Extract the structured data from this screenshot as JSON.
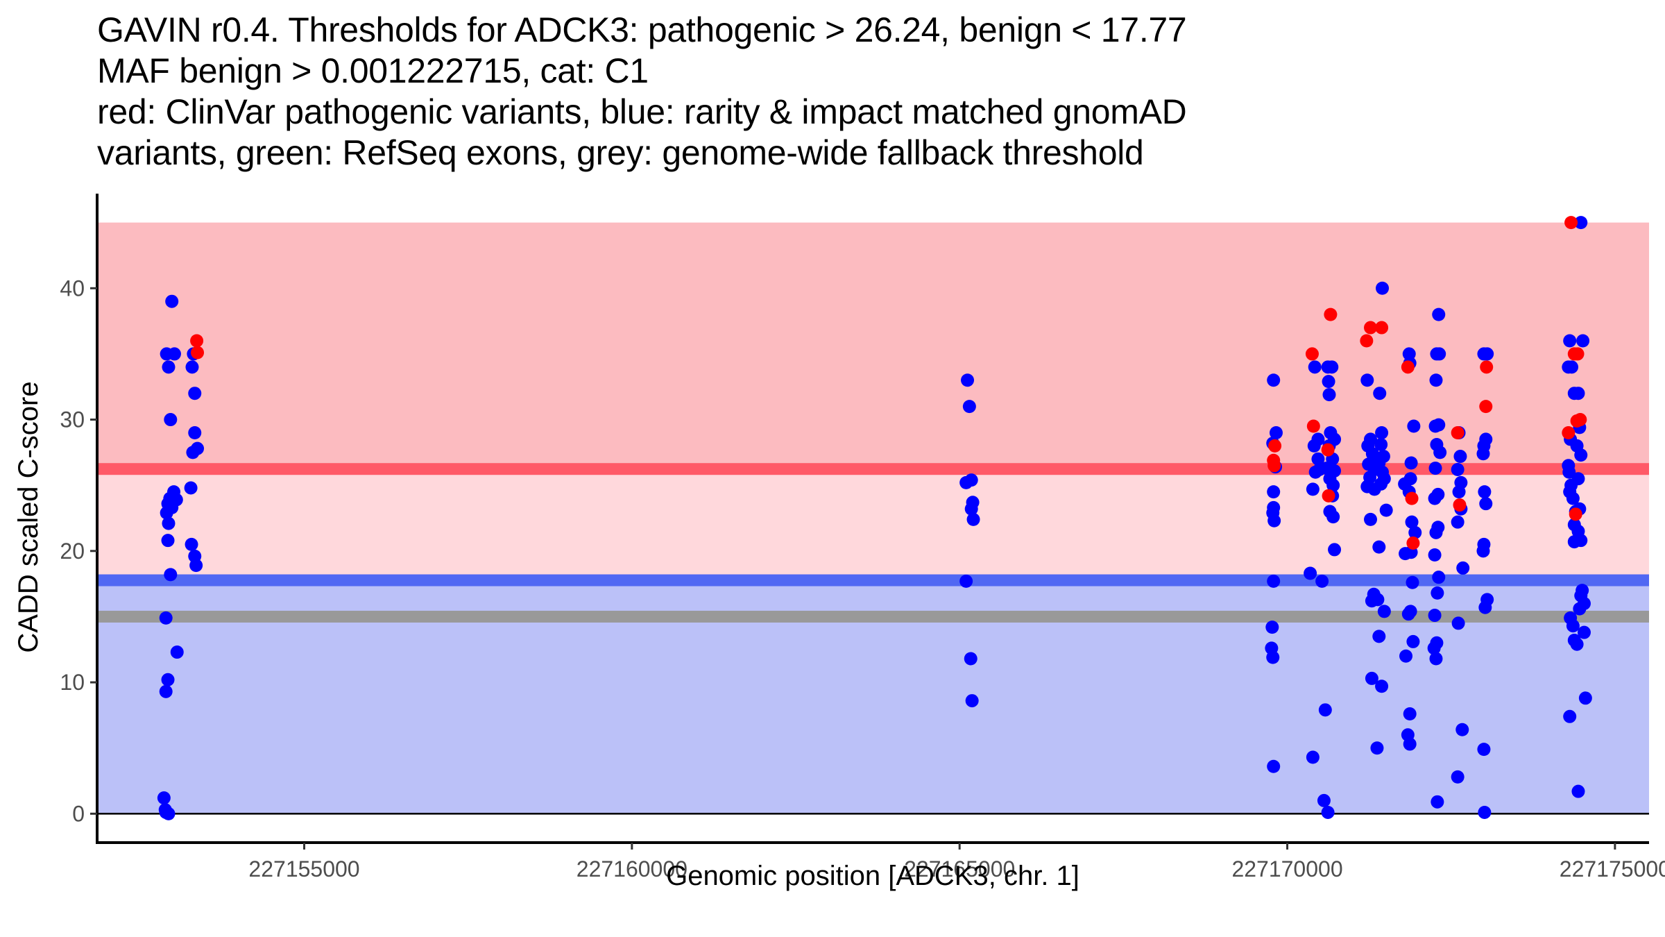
{
  "title_lines": [
    "GAVIN r0.4. Thresholds for ADCK3: pathogenic > 26.24, benign < 17.77",
    "MAF benign > 0.001222715, cat: C1",
    "red: ClinVar pathogenic variants, blue: rarity & impact matched gnomAD",
    "variants, green: RefSeq exons, grey: genome-wide fallback threshold"
  ],
  "chart_data": {
    "type": "scatter",
    "title": "GAVIN r0.4. Thresholds for ADCK3: pathogenic > 26.24, benign < 17.77 / MAF benign > 0.001222715, cat: C1",
    "xlabel": "Genomic position [ADCK3, chr. 1]",
    "ylabel": "CADD scaled C-score",
    "xlim": [
      227151840,
      227175520
    ],
    "ylim": [
      -2.2,
      47.2
    ],
    "x_ticks": [
      227155000,
      227160000,
      227165000,
      227170000,
      227175000
    ],
    "x_tick_labels": [
      "227155000",
      "227160000",
      "227165000",
      "227170000",
      "227175000"
    ],
    "y_ticks": [
      0,
      10,
      20,
      30,
      40
    ],
    "y_tick_labels": [
      "0",
      "10",
      "20",
      "30",
      "40"
    ],
    "grid": false,
    "legend": "none (described in title)",
    "colors": {
      "pathogenic_band": "#fcbbc0",
      "vus_band": "#ffd8dc",
      "benign_band": "#bbc1f8",
      "pathogenic_line": "#ff5967",
      "benign_line": "#5168f3",
      "fallback_line": "#999999",
      "clinvar_point": "#ff0000",
      "gnomad_point": "#0000ff"
    },
    "thresholds": {
      "pathogenic": 26.24,
      "benign": 17.77,
      "genome_wide_fallback": 15.0
    },
    "bands": [
      {
        "name": "pathogenic",
        "from": 26.24,
        "to": 45
      },
      {
        "name": "uncertain",
        "from": 17.77,
        "to": 26.24
      },
      {
        "name": "benign",
        "from": 0,
        "to": 17.77
      }
    ],
    "series": [
      {
        "name": "gnomAD (blue)",
        "color": "#0000ff",
        "points": [
          [
            227152980,
            39.0
          ],
          [
            227152900,
            35.0
          ],
          [
            227153020,
            35.0
          ],
          [
            227152930,
            34.0
          ],
          [
            227152960,
            30.0
          ],
          [
            227153010,
            24.5
          ],
          [
            227152950,
            24.0
          ],
          [
            227153050,
            23.9
          ],
          [
            227152920,
            23.6
          ],
          [
            227152980,
            23.3
          ],
          [
            227152900,
            22.9
          ],
          [
            227152930,
            22.1
          ],
          [
            227152920,
            20.8
          ],
          [
            227152960,
            18.2
          ],
          [
            227152890,
            14.9
          ],
          [
            227153060,
            12.3
          ],
          [
            227152920,
            10.2
          ],
          [
            227152890,
            9.3
          ],
          [
            227152860,
            1.2
          ],
          [
            227152880,
            0.3
          ],
          [
            227152930,
            0.0
          ],
          [
            227152890,
            0.1
          ],
          [
            227153310,
            35.0
          ],
          [
            227153290,
            34.0
          ],
          [
            227153330,
            32.0
          ],
          [
            227153330,
            29.0
          ],
          [
            227153300,
            27.5
          ],
          [
            227153370,
            27.8
          ],
          [
            227153270,
            24.8
          ],
          [
            227153280,
            20.5
          ],
          [
            227153330,
            19.6
          ],
          [
            227153350,
            18.9
          ],
          [
            227165120,
            33.0
          ],
          [
            227165150,
            31.0
          ],
          [
            227165180,
            25.4
          ],
          [
            227165100,
            25.2
          ],
          [
            227165200,
            23.7
          ],
          [
            227165180,
            23.2
          ],
          [
            227165210,
            22.4
          ],
          [
            227165100,
            17.7
          ],
          [
            227165170,
            11.8
          ],
          [
            227165190,
            8.6
          ],
          [
            227169790,
            33.0
          ],
          [
            227169780,
            28.2
          ],
          [
            227169830,
            29.0
          ],
          [
            227169820,
            26.4
          ],
          [
            227169790,
            24.5
          ],
          [
            227169790,
            23.3
          ],
          [
            227169780,
            22.9
          ],
          [
            227169800,
            22.3
          ],
          [
            227169790,
            17.7
          ],
          [
            227169770,
            14.2
          ],
          [
            227169760,
            12.6
          ],
          [
            227169780,
            11.9
          ],
          [
            227169790,
            3.6
          ],
          [
            227170420,
            34.0
          ],
          [
            227170470,
            28.5
          ],
          [
            227170410,
            28.0
          ],
          [
            227170470,
            27.0
          ],
          [
            227170490,
            26.2
          ],
          [
            227170430,
            26.0
          ],
          [
            227170390,
            24.7
          ],
          [
            227170350,
            18.3
          ],
          [
            227170530,
            17.7
          ],
          [
            227170580,
            7.9
          ],
          [
            227170390,
            4.3
          ],
          [
            227170560,
            1.0
          ],
          [
            227170620,
            0.1
          ],
          [
            227170620,
            34.0
          ],
          [
            227170680,
            34.0
          ],
          [
            227170630,
            32.9
          ],
          [
            227170640,
            31.9
          ],
          [
            227170660,
            29.0
          ],
          [
            227170720,
            28.5
          ],
          [
            227170640,
            28.0
          ],
          [
            227170690,
            27.0
          ],
          [
            227170600,
            26.3
          ],
          [
            227170720,
            26.1
          ],
          [
            227170650,
            25.5
          ],
          [
            227170700,
            25.0
          ],
          [
            227170690,
            24.2
          ],
          [
            227170650,
            23.0
          ],
          [
            227170700,
            22.6
          ],
          [
            227170720,
            20.1
          ],
          [
            227171220,
            33.0
          ],
          [
            227171270,
            28.5
          ],
          [
            227171230,
            28.0
          ],
          [
            227171300,
            27.4
          ],
          [
            227171240,
            26.6
          ],
          [
            227171330,
            26.2
          ],
          [
            227171260,
            25.6
          ],
          [
            227171220,
            24.9
          ],
          [
            227171330,
            24.7
          ],
          [
            227171270,
            22.4
          ],
          [
            227171320,
            16.7
          ],
          [
            227171290,
            16.2
          ],
          [
            227171380,
            16.3
          ],
          [
            227171290,
            10.3
          ],
          [
            227171440,
            9.7
          ],
          [
            227171370,
            5.0
          ],
          [
            227171450,
            40.0
          ],
          [
            227171410,
            32.0
          ],
          [
            227171440,
            29.0
          ],
          [
            227171430,
            28.1
          ],
          [
            227171470,
            27.2
          ],
          [
            227171400,
            26.7
          ],
          [
            227171450,
            26.0
          ],
          [
            227171480,
            25.5
          ],
          [
            227171430,
            25.1
          ],
          [
            227171510,
            23.1
          ],
          [
            227171400,
            20.3
          ],
          [
            227171480,
            15.4
          ],
          [
            227171400,
            13.5
          ],
          [
            227171860,
            35.0
          ],
          [
            227171870,
            34.3
          ],
          [
            227171930,
            29.5
          ],
          [
            227171890,
            26.7
          ],
          [
            227171880,
            25.5
          ],
          [
            227171790,
            25.1
          ],
          [
            227171860,
            24.5
          ],
          [
            227171900,
            22.2
          ],
          [
            227171950,
            21.4
          ],
          [
            227171890,
            19.9
          ],
          [
            227171800,
            19.8
          ],
          [
            227171910,
            17.6
          ],
          [
            227171880,
            15.4
          ],
          [
            227171850,
            15.2
          ],
          [
            227171920,
            13.1
          ],
          [
            227171810,
            12.0
          ],
          [
            227171870,
            7.6
          ],
          [
            227171840,
            6.0
          ],
          [
            227171870,
            5.3
          ],
          [
            227172310,
            38.0
          ],
          [
            227172280,
            35.0
          ],
          [
            227172320,
            35.0
          ],
          [
            227172270,
            33.0
          ],
          [
            227172260,
            29.5
          ],
          [
            227172310,
            29.6
          ],
          [
            227172280,
            28.1
          ],
          [
            227172330,
            27.5
          ],
          [
            227172260,
            26.3
          ],
          [
            227172300,
            24.3
          ],
          [
            227172250,
            24.0
          ],
          [
            227172300,
            21.8
          ],
          [
            227172270,
            21.4
          ],
          [
            227172250,
            19.7
          ],
          [
            227172310,
            18.0
          ],
          [
            227172290,
            16.8
          ],
          [
            227172250,
            15.1
          ],
          [
            227172280,
            13.0
          ],
          [
            227172240,
            12.6
          ],
          [
            227172270,
            11.8
          ],
          [
            227172290,
            0.9
          ],
          [
            227172620,
            29.0
          ],
          [
            227172640,
            27.2
          ],
          [
            227172600,
            26.2
          ],
          [
            227172650,
            25.2
          ],
          [
            227172620,
            24.5
          ],
          [
            227172650,
            23.2
          ],
          [
            227172600,
            22.2
          ],
          [
            227172680,
            18.7
          ],
          [
            227172610,
            14.5
          ],
          [
            227172670,
            6.4
          ],
          [
            227172600,
            2.8
          ],
          [
            227173000,
            35.0
          ],
          [
            227173050,
            35.0
          ],
          [
            227173030,
            28.5
          ],
          [
            227173000,
            28.0
          ],
          [
            227172990,
            27.4
          ],
          [
            227173010,
            24.5
          ],
          [
            227173030,
            23.6
          ],
          [
            227173000,
            20.5
          ],
          [
            227172990,
            20.0
          ],
          [
            227173050,
            16.3
          ],
          [
            227173020,
            15.7
          ],
          [
            227173000,
            4.9
          ],
          [
            227173010,
            0.1
          ],
          [
            227174310,
            36.0
          ],
          [
            227174510,
            36.0
          ],
          [
            227174290,
            34.0
          ],
          [
            227174340,
            34.0
          ],
          [
            227174380,
            32.0
          ],
          [
            227174440,
            32.0
          ],
          [
            227174460,
            29.4
          ],
          [
            227174320,
            28.5
          ],
          [
            227174420,
            28.0
          ],
          [
            227174480,
            27.3
          ],
          [
            227174290,
            26.5
          ],
          [
            227174300,
            26.0
          ],
          [
            227174440,
            25.5
          ],
          [
            227174330,
            25.0
          ],
          [
            227174310,
            24.5
          ],
          [
            227174360,
            24.0
          ],
          [
            227174460,
            23.2
          ],
          [
            227174400,
            23.0
          ],
          [
            227174380,
            22.0
          ],
          [
            227174440,
            21.5
          ],
          [
            227174380,
            20.7
          ],
          [
            227174480,
            20.8
          ],
          [
            227174500,
            17.0
          ],
          [
            227174480,
            16.6
          ],
          [
            227174530,
            16.0
          ],
          [
            227174460,
            15.6
          ],
          [
            227174320,
            14.9
          ],
          [
            227174360,
            14.3
          ],
          [
            227174530,
            13.8
          ],
          [
            227174380,
            13.2
          ],
          [
            227174420,
            12.9
          ],
          [
            227174550,
            8.8
          ],
          [
            227174310,
            7.4
          ],
          [
            227174440,
            1.7
          ],
          [
            227174480,
            45.0
          ]
        ]
      },
      {
        "name": "ClinVar pathogenic (red)",
        "color": "#ff0000",
        "points": [
          [
            227153360,
            36.0
          ],
          [
            227153370,
            35.1
          ],
          [
            227169810,
            28.0
          ],
          [
            227169790,
            26.9
          ],
          [
            227169800,
            26.5
          ],
          [
            227170380,
            35.0
          ],
          [
            227170400,
            29.5
          ],
          [
            227170620,
            27.7
          ],
          [
            227170630,
            24.2
          ],
          [
            227170660,
            38.0
          ],
          [
            227171210,
            36.0
          ],
          [
            227171270,
            37.0
          ],
          [
            227171440,
            37.0
          ],
          [
            227171840,
            34.0
          ],
          [
            227171900,
            24.0
          ],
          [
            227171920,
            20.6
          ],
          [
            227172600,
            29.0
          ],
          [
            227172630,
            23.5
          ],
          [
            227173040,
            34.0
          ],
          [
            227173030,
            31.0
          ],
          [
            227174330,
            45.0
          ],
          [
            227174380,
            35.0
          ],
          [
            227174430,
            35.0
          ],
          [
            227174470,
            30.0
          ],
          [
            227174420,
            29.9
          ],
          [
            227174290,
            29.0
          ],
          [
            227174400,
            22.8
          ]
        ]
      }
    ]
  }
}
